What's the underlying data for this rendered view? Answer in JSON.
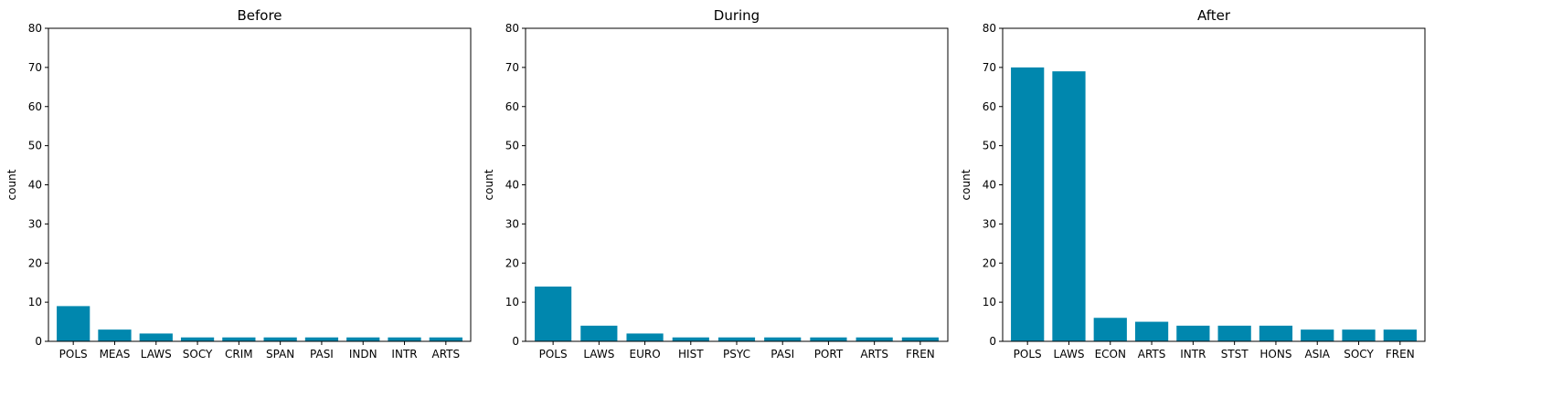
{
  "chart_data": [
    {
      "type": "bar",
      "title": "Before",
      "xlabel": "",
      "ylabel": "count",
      "ylim": [
        0,
        80
      ],
      "yticks": [
        0,
        10,
        20,
        30,
        40,
        50,
        60,
        70,
        80
      ],
      "categories": [
        "POLS",
        "MEAS",
        "LAWS",
        "SOCY",
        "CRIM",
        "SPAN",
        "PASI",
        "INDN",
        "INTR",
        "ARTS"
      ],
      "values": [
        9,
        3,
        2,
        1,
        1,
        1,
        1,
        1,
        1,
        1
      ],
      "bar_color": "#0087ae",
      "grid": false
    },
    {
      "type": "bar",
      "title": "During",
      "xlabel": "",
      "ylabel": "count",
      "ylim": [
        0,
        80
      ],
      "yticks": [
        0,
        10,
        20,
        30,
        40,
        50,
        60,
        70,
        80
      ],
      "categories": [
        "POLS",
        "LAWS",
        "EURO",
        "HIST",
        "PSYC",
        "PASI",
        "PORT",
        "ARTS",
        "FREN"
      ],
      "values": [
        14,
        4,
        2,
        1,
        1,
        1,
        1,
        1,
        1
      ],
      "bar_color": "#0087ae",
      "grid": false
    },
    {
      "type": "bar",
      "title": "After",
      "xlabel": "",
      "ylabel": "count",
      "ylim": [
        0,
        80
      ],
      "yticks": [
        0,
        10,
        20,
        30,
        40,
        50,
        60,
        70,
        80
      ],
      "categories": [
        "POLS",
        "LAWS",
        "ECON",
        "ARTS",
        "INTR",
        "STST",
        "HONS",
        "ASIA",
        "SOCY",
        "FREN"
      ],
      "values": [
        70,
        69,
        6,
        5,
        4,
        4,
        4,
        3,
        3,
        3
      ],
      "bar_color": "#0087ae",
      "grid": false
    }
  ]
}
